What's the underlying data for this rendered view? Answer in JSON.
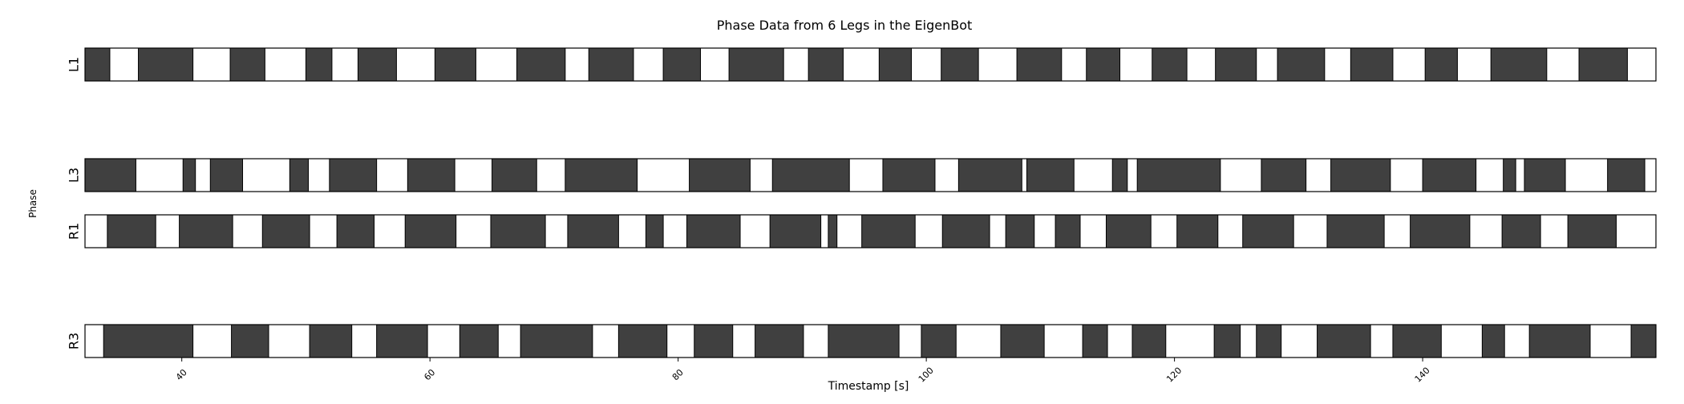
{
  "chart_data": {
    "type": "broken_barh",
    "title": "Phase Data from 6 Legs in the EigenBot",
    "xlabel": "Timestamp [s]",
    "ylabel": "Phase",
    "xlim": [
      32.2,
      158.8
    ],
    "xticks": [
      40,
      60,
      80,
      100,
      120,
      140
    ],
    "colors": {
      "stance": "#404040",
      "swing": "#ffffff",
      "edge": "#000000"
    },
    "series": [
      {
        "name": "L1",
        "stance": [
          [
            32.2,
            34.2
          ],
          [
            36.5,
            40.9
          ],
          [
            43.9,
            46.7
          ],
          [
            50.0,
            52.1
          ],
          [
            54.2,
            57.3
          ],
          [
            60.4,
            63.7
          ],
          [
            67.0,
            70.9
          ],
          [
            72.8,
            76.4
          ],
          [
            78.8,
            81.8
          ],
          [
            84.1,
            88.5
          ],
          [
            90.5,
            93.3
          ],
          [
            96.2,
            98.8
          ],
          [
            101.2,
            104.2
          ],
          [
            107.3,
            110.9
          ],
          [
            112.9,
            115.6
          ],
          [
            118.2,
            121.0
          ],
          [
            123.3,
            126.6
          ],
          [
            128.3,
            132.1
          ],
          [
            134.2,
            137.6
          ],
          [
            140.2,
            142.8
          ],
          [
            145.5,
            150.0
          ],
          [
            152.6,
            156.5
          ]
        ]
      },
      {
        "name": "L3",
        "stance": [
          [
            32.2,
            36.3
          ],
          [
            40.1,
            41.1
          ],
          [
            42.3,
            44.9
          ],
          [
            48.7,
            50.2
          ],
          [
            51.9,
            55.7
          ],
          [
            58.2,
            62.0
          ],
          [
            65.0,
            68.6
          ],
          [
            70.9,
            76.7
          ],
          [
            80.9,
            85.8
          ],
          [
            87.6,
            93.8
          ],
          [
            96.5,
            100.7
          ],
          [
            102.6,
            107.7
          ],
          [
            108.1,
            111.9
          ],
          [
            115.0,
            116.2
          ],
          [
            117.0,
            123.7
          ],
          [
            127.0,
            130.6
          ],
          [
            132.6,
            137.4
          ],
          [
            140.0,
            144.3
          ],
          [
            146.5,
            147.5
          ],
          [
            148.2,
            151.5
          ],
          [
            154.9,
            157.9
          ]
        ]
      },
      {
        "name": "R1",
        "stance": [
          [
            34.0,
            37.9
          ],
          [
            39.8,
            44.1
          ],
          [
            46.5,
            50.3
          ],
          [
            52.5,
            55.5
          ],
          [
            58.0,
            62.1
          ],
          [
            64.9,
            69.3
          ],
          [
            71.1,
            75.2
          ],
          [
            77.4,
            78.8
          ],
          [
            80.7,
            85.0
          ],
          [
            87.4,
            91.5
          ],
          [
            92.1,
            92.8
          ],
          [
            94.8,
            99.1
          ],
          [
            101.3,
            105.1
          ],
          [
            106.4,
            108.7
          ],
          [
            110.4,
            112.4
          ],
          [
            114.5,
            118.1
          ],
          [
            120.2,
            123.5
          ],
          [
            125.5,
            129.6
          ],
          [
            132.3,
            136.9
          ],
          [
            139.0,
            143.8
          ],
          [
            146.4,
            149.5
          ],
          [
            151.7,
            155.6
          ]
        ]
      },
      {
        "name": "R3",
        "stance": [
          [
            33.7,
            40.9
          ],
          [
            44.0,
            47.0
          ],
          [
            50.3,
            53.7
          ],
          [
            55.7,
            59.8
          ],
          [
            62.4,
            65.5
          ],
          [
            67.3,
            73.1
          ],
          [
            75.2,
            79.1
          ],
          [
            81.3,
            84.4
          ],
          [
            86.2,
            90.1
          ],
          [
            92.1,
            97.8
          ],
          [
            99.6,
            102.4
          ],
          [
            106.0,
            109.5
          ],
          [
            112.6,
            114.6
          ],
          [
            116.6,
            119.3
          ],
          [
            123.2,
            125.3
          ],
          [
            126.6,
            128.6
          ],
          [
            131.5,
            135.8
          ],
          [
            137.6,
            141.5
          ],
          [
            144.8,
            146.6
          ],
          [
            148.6,
            153.5
          ],
          [
            156.8,
            158.8
          ]
        ]
      }
    ]
  }
}
